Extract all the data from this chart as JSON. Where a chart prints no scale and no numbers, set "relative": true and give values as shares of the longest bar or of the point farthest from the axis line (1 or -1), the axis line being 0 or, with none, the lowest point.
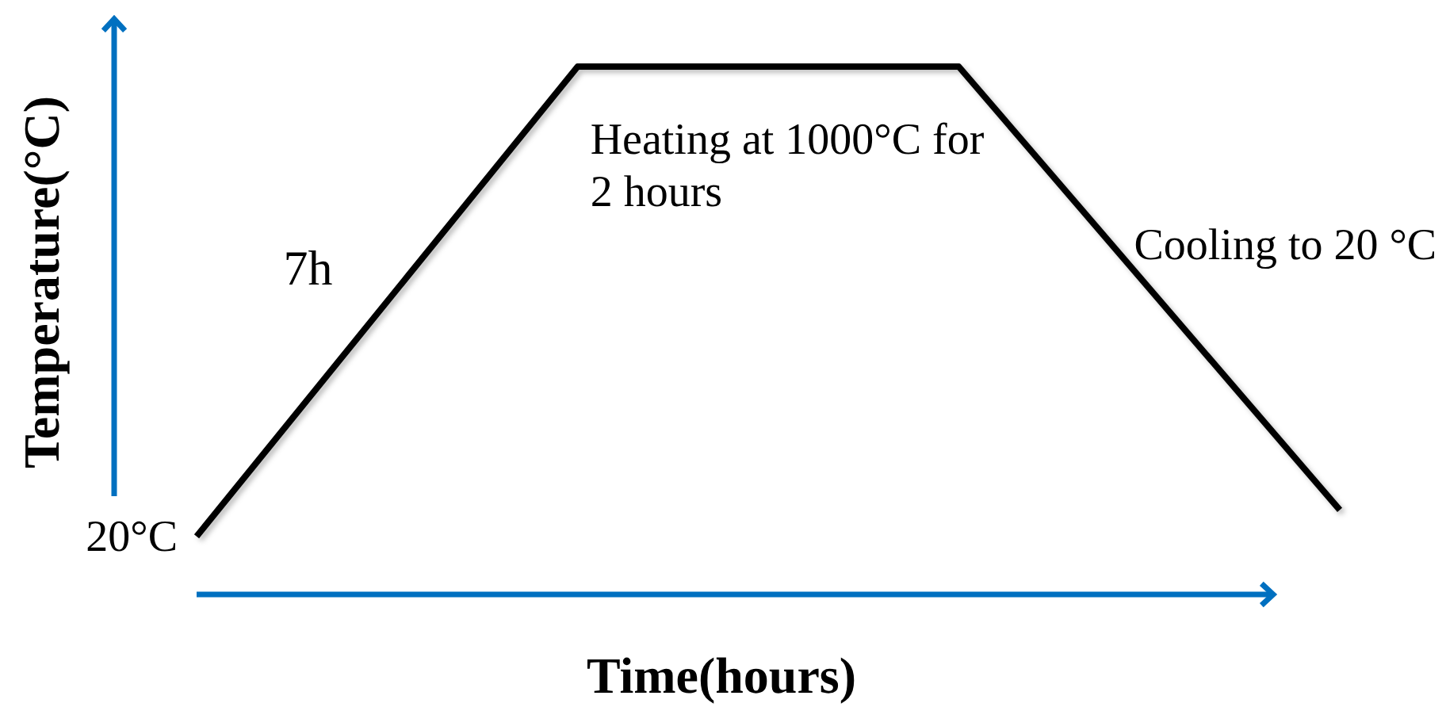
{
  "chart_data": {
    "type": "line",
    "xlabel": "Time(hours)",
    "ylabel": "Temperature(°C)",
    "relative": true,
    "categories": [
      null,
      null,
      null,
      null
    ],
    "values": [
      0.11,
      1,
      1,
      0.16
    ],
    "color": "#000000",
    "annotations": [
      "7h",
      "Heating at 1000°C for 2 hours",
      "Cooling to 20 °C",
      "20°C"
    ]
  }
}
